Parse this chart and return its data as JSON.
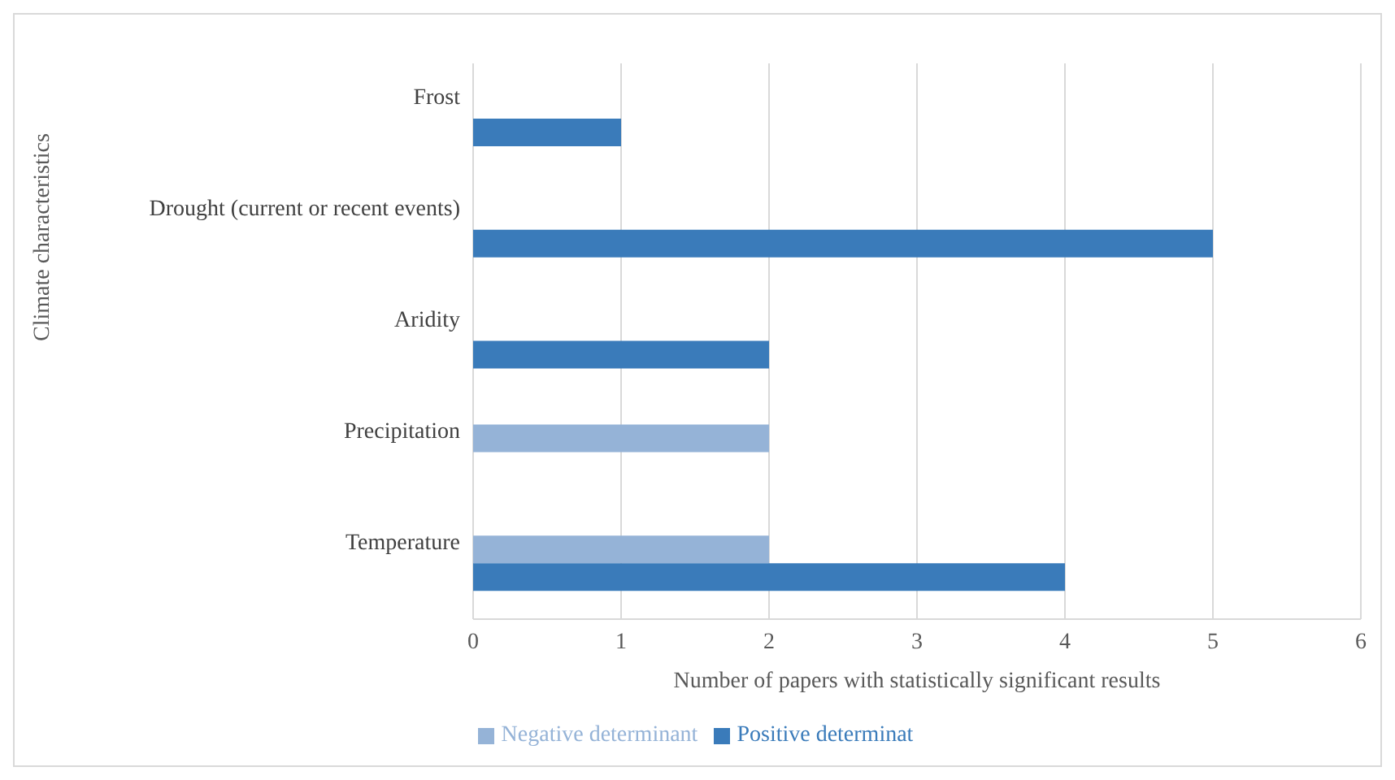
{
  "chart_data": {
    "type": "bar",
    "orientation": "horizontal",
    "xlabel": "Number of papers with statistically significant results",
    "ylabel": "Climate characteristics",
    "categories": [
      "Frost",
      "Drought (current or recent events)",
      "Aridity",
      "Precipitation",
      "Temperature"
    ],
    "series": [
      {
        "name": "Negative determinant",
        "color": "#95b3d7",
        "values": [
          null,
          null,
          null,
          2,
          2
        ]
      },
      {
        "name": "Positive determinat",
        "color": "#3a7bba",
        "values": [
          1,
          5,
          2,
          null,
          4
        ]
      }
    ],
    "xlim": [
      0,
      6
    ],
    "xticks": [
      0,
      1,
      2,
      3,
      4,
      5,
      6
    ],
    "grid": "x",
    "legend": "bottom"
  }
}
